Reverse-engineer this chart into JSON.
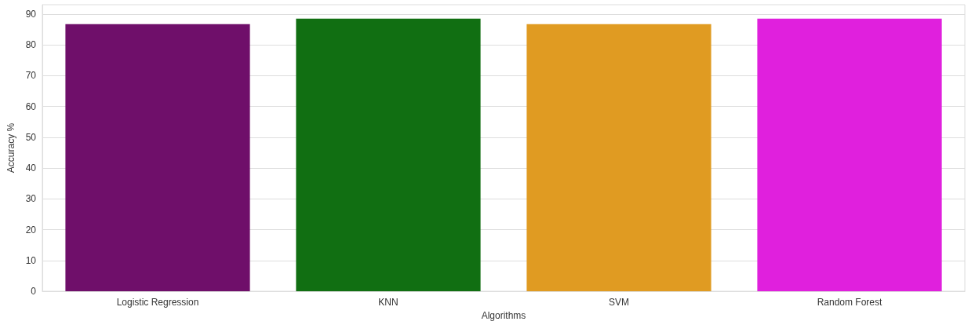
{
  "chart_data": {
    "type": "bar",
    "xlabel": "Algorithms",
    "ylabel": "Accuracy %",
    "categories": [
      "Logistic Regression",
      "KNN",
      "SVM",
      "Random Forest"
    ],
    "values": [
      86.7,
      88.5,
      86.7,
      88.5
    ],
    "colors": [
      "#6f0f6a",
      "#116f12",
      "#e09b22",
      "#e020dd"
    ],
    "ylim": [
      0,
      93
    ],
    "yticks": [
      0,
      10,
      20,
      30,
      40,
      50,
      60,
      70,
      80,
      90
    ],
    "grid": "y"
  }
}
